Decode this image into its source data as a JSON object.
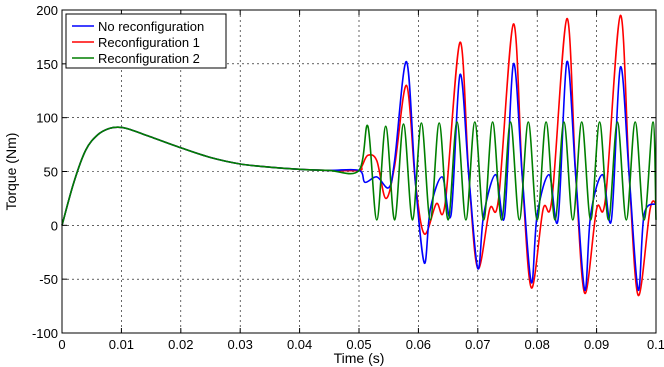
{
  "chart_data": {
    "type": "line",
    "title": "",
    "xlabel": "Time (s)",
    "ylabel": "Torque (Nm)",
    "xlim": [
      0,
      0.1
    ],
    "ylim": [
      -100,
      200
    ],
    "xticks": [
      0,
      0.01,
      0.02,
      0.03,
      0.04,
      0.05,
      0.06,
      0.07,
      0.08,
      0.09,
      0.1
    ],
    "xtick_labels": [
      "0",
      "0.01",
      "0.02",
      "0.03",
      "0.04",
      "0.05",
      "0.06",
      "0.07",
      "0.08",
      "0.09",
      "0.1"
    ],
    "yticks": [
      -100,
      -50,
      0,
      50,
      100,
      150,
      200
    ],
    "ytick_labels": [
      "-100",
      "-50",
      "0",
      "50",
      "100",
      "150",
      "200"
    ],
    "grid": true,
    "legend_position": "top-left",
    "series": [
      {
        "name": "No reconfiguration",
        "color": "#0000ff",
        "x": [
          0,
          0.002,
          0.004,
          0.006,
          0.008,
          0.01,
          0.012,
          0.015,
          0.02,
          0.025,
          0.03,
          0.035,
          0.04,
          0.045,
          0.05,
          0.051,
          0.053,
          0.055,
          0.056,
          0.058,
          0.0595,
          0.061,
          0.062,
          0.064,
          0.0655,
          0.067,
          0.0685,
          0.07,
          0.071,
          0.073,
          0.0745,
          0.076,
          0.0775,
          0.079,
          0.08,
          0.082,
          0.0835,
          0.085,
          0.0865,
          0.088,
          0.089,
          0.091,
          0.0925,
          0.094,
          0.0955,
          0.097,
          0.098,
          0.1
        ],
        "y": [
          0,
          40,
          70,
          84,
          90,
          91,
          88,
          82,
          72,
          63,
          57,
          54,
          52,
          51,
          51,
          40,
          45,
          35,
          60,
          152,
          40,
          -35,
          15,
          45,
          10,
          140,
          45,
          -40,
          10,
          47,
          8,
          150,
          45,
          -53,
          10,
          47,
          5,
          152,
          45,
          -60,
          10,
          47,
          5,
          147,
          45,
          -60,
          10,
          20
        ]
      },
      {
        "name": "Reconfiguration 1",
        "color": "#ff0000",
        "x": [
          0,
          0.002,
          0.004,
          0.006,
          0.008,
          0.01,
          0.012,
          0.015,
          0.02,
          0.025,
          0.03,
          0.035,
          0.04,
          0.045,
          0.05,
          0.0505,
          0.0515,
          0.053,
          0.0545,
          0.056,
          0.058,
          0.0595,
          0.061,
          0.063,
          0.0645,
          0.067,
          0.0685,
          0.07,
          0.072,
          0.0735,
          0.076,
          0.0775,
          0.079,
          0.081,
          0.0825,
          0.085,
          0.0865,
          0.088,
          0.09,
          0.0915,
          0.094,
          0.0955,
          0.097,
          0.099,
          0.1
        ],
        "y": [
          0,
          40,
          70,
          84,
          90,
          91,
          88,
          82,
          72,
          63,
          57,
          54,
          52,
          51,
          51,
          55,
          65,
          60,
          25,
          55,
          130,
          40,
          -8,
          20,
          20,
          170,
          45,
          -40,
          15,
          25,
          187,
          45,
          -58,
          15,
          25,
          192,
          45,
          -63,
          15,
          25,
          195,
          45,
          -65,
          15,
          20
        ]
      },
      {
        "name": "Reconfiguration 2",
        "color": "#007f00",
        "x": [
          0,
          0.002,
          0.004,
          0.006,
          0.008,
          0.01,
          0.012,
          0.015,
          0.02,
          0.025,
          0.03,
          0.035,
          0.04,
          0.045,
          0.05,
          0.0515,
          0.053,
          0.0545,
          0.056,
          0.0575,
          0.059,
          0.0605,
          0.062,
          0.0635,
          0.065,
          0.0665,
          0.068,
          0.0695,
          0.071,
          0.0725,
          0.074,
          0.0755,
          0.077,
          0.0785,
          0.08,
          0.0815,
          0.083,
          0.0845,
          0.086,
          0.0875,
          0.089,
          0.0905,
          0.092,
          0.0935,
          0.095,
          0.0965,
          0.098,
          0.0995,
          0.1
        ],
        "y": [
          0,
          40,
          70,
          84,
          90,
          91,
          88,
          82,
          72,
          63,
          57,
          54,
          52,
          51,
          51,
          92,
          5,
          92,
          5,
          94,
          5,
          95,
          5,
          95,
          5,
          96,
          5,
          96,
          5,
          96,
          5,
          96,
          5,
          96,
          5,
          96,
          5,
          96,
          5,
          96,
          5,
          96,
          5,
          96,
          5,
          96,
          5,
          96,
          5
        ]
      }
    ]
  }
}
